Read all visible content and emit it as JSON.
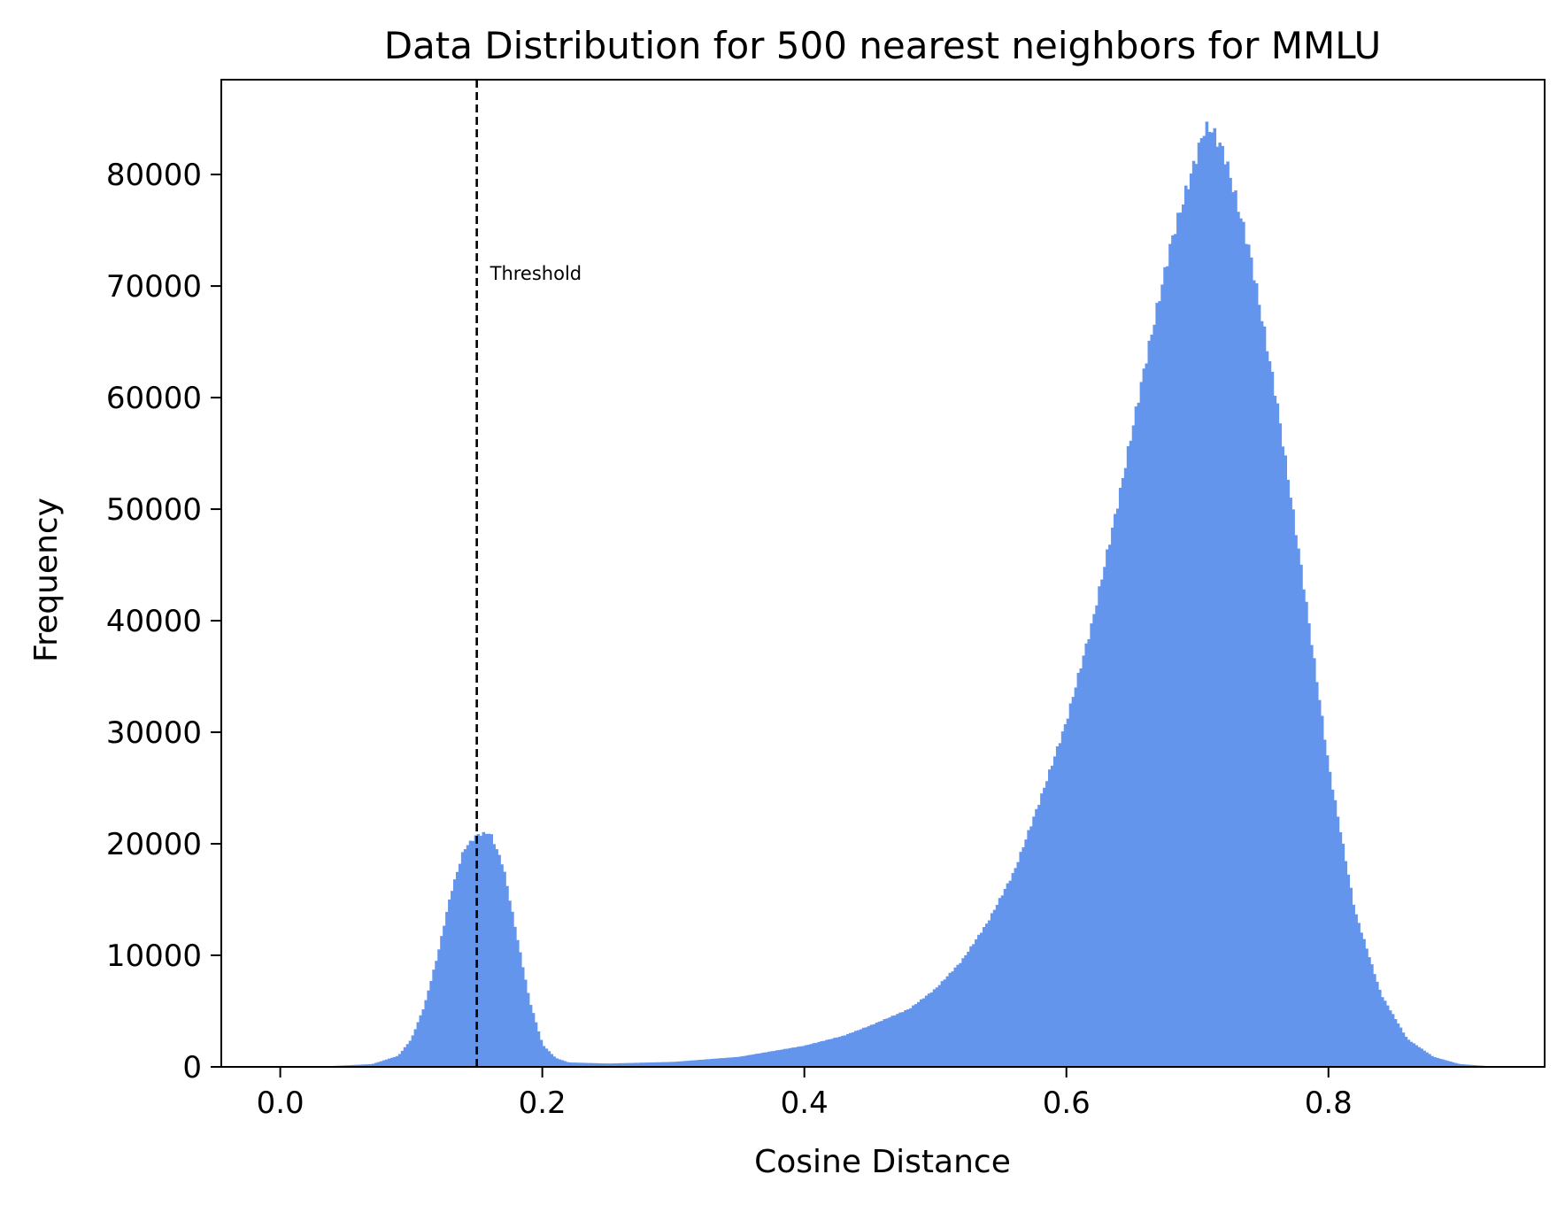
{
  "chart_data": {
    "type": "histogram",
    "title": "Data Distribution for 500 nearest neighbors for MMLU",
    "xlabel": "Cosine Distance",
    "ylabel": "Frequency",
    "xlim": [
      -0.045,
      0.965
    ],
    "ylim": [
      0,
      88500
    ],
    "xticks": [
      0.0,
      0.2,
      0.4,
      0.6,
      0.8
    ],
    "xtick_labels": [
      "0.0",
      "0.2",
      "0.4",
      "0.6",
      "0.8"
    ],
    "yticks": [
      0,
      10000,
      20000,
      30000,
      40000,
      50000,
      60000,
      70000,
      80000
    ],
    "ytick_labels": [
      "0",
      "10000",
      "20000",
      "30000",
      "40000",
      "50000",
      "60000",
      "70000",
      "80000"
    ],
    "bar_color": "#6495ED",
    "threshold": {
      "x": 0.15,
      "label": "Threshold",
      "style": "dashed",
      "color": "#000000"
    },
    "distribution_points": [
      [
        0.0,
        60
      ],
      [
        0.04,
        80
      ],
      [
        0.07,
        250
      ],
      [
        0.09,
        1000
      ],
      [
        0.1,
        2500
      ],
      [
        0.11,
        5500
      ],
      [
        0.12,
        10000
      ],
      [
        0.13,
        15500
      ],
      [
        0.14,
        19500
      ],
      [
        0.15,
        20800
      ],
      [
        0.16,
        21000
      ],
      [
        0.17,
        18000
      ],
      [
        0.18,
        12000
      ],
      [
        0.19,
        6000
      ],
      [
        0.2,
        2000
      ],
      [
        0.21,
        800
      ],
      [
        0.22,
        400
      ],
      [
        0.25,
        300
      ],
      [
        0.3,
        450
      ],
      [
        0.35,
        900
      ],
      [
        0.4,
        1900
      ],
      [
        0.43,
        2800
      ],
      [
        0.45,
        3700
      ],
      [
        0.48,
        5200
      ],
      [
        0.5,
        7000
      ],
      [
        0.52,
        9500
      ],
      [
        0.54,
        13000
      ],
      [
        0.56,
        17500
      ],
      [
        0.58,
        24000
      ],
      [
        0.6,
        31000
      ],
      [
        0.62,
        40000
      ],
      [
        0.64,
        51000
      ],
      [
        0.66,
        63000
      ],
      [
        0.68,
        74000
      ],
      [
        0.7,
        82000
      ],
      [
        0.705,
        84000
      ],
      [
        0.71,
        84200
      ],
      [
        0.72,
        82000
      ],
      [
        0.74,
        73000
      ],
      [
        0.76,
        60000
      ],
      [
        0.78,
        44000
      ],
      [
        0.8,
        27000
      ],
      [
        0.82,
        14000
      ],
      [
        0.84,
        6500
      ],
      [
        0.86,
        2500
      ],
      [
        0.88,
        900
      ],
      [
        0.9,
        250
      ],
      [
        0.92,
        80
      ]
    ],
    "bin_range": [
      0.0,
      0.92
    ],
    "bin_count": 460
  }
}
